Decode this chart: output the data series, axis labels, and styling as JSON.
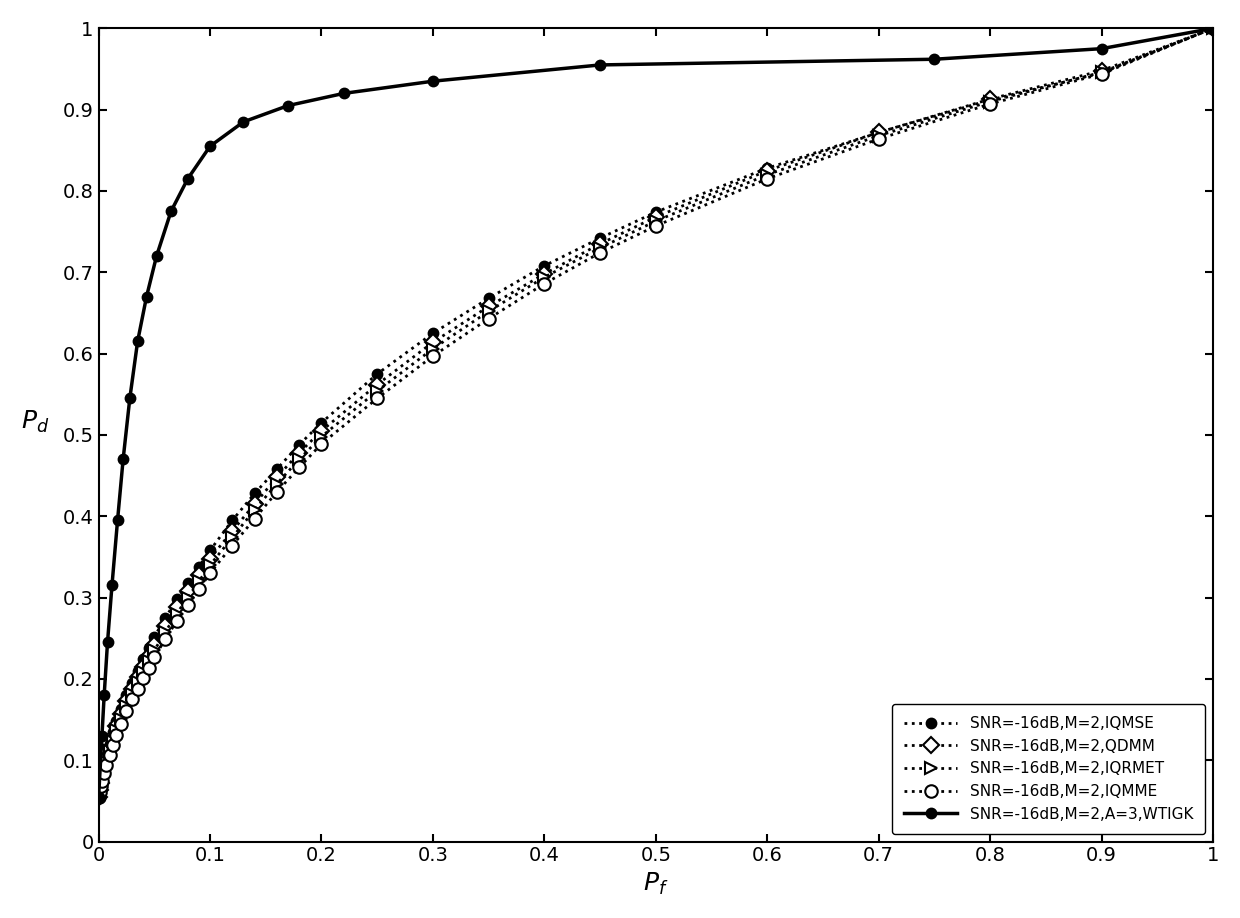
{
  "title": "",
  "xlabel": "$P_f$",
  "ylabel": "$P_d$",
  "xlim": [
    0,
    1
  ],
  "ylim": [
    0,
    1
  ],
  "xticks": [
    0,
    0.1,
    0.2,
    0.3,
    0.4,
    0.5,
    0.6,
    0.7,
    0.8,
    0.9,
    1.0
  ],
  "yticks": [
    0,
    0.1,
    0.2,
    0.3,
    0.4,
    0.5,
    0.6,
    0.7,
    0.8,
    0.9,
    1.0
  ],
  "legend_loc": "lower right",
  "series": [
    {
      "label": "SNR=-16dB,M=2,IQMSE",
      "linestyle": "dotted",
      "linewidth": 2.0,
      "color": "#000000",
      "marker": "o",
      "markersize": 7,
      "markerfacecolor": "#000000",
      "markeredgecolor": "#000000",
      "markevery": 1,
      "x": [
        0.0,
        0.001,
        0.002,
        0.003,
        0.005,
        0.007,
        0.01,
        0.013,
        0.016,
        0.02,
        0.025,
        0.03,
        0.035,
        0.04,
        0.045,
        0.05,
        0.06,
        0.07,
        0.08,
        0.09,
        0.1,
        0.12,
        0.14,
        0.16,
        0.18,
        0.2,
        0.25,
        0.3,
        0.35,
        0.4,
        0.45,
        0.5,
        0.6,
        0.7,
        0.8,
        0.9,
        1.0
      ],
      "y": [
        0.055,
        0.065,
        0.075,
        0.085,
        0.095,
        0.105,
        0.12,
        0.135,
        0.148,
        0.163,
        0.18,
        0.195,
        0.21,
        0.225,
        0.238,
        0.252,
        0.275,
        0.298,
        0.318,
        0.338,
        0.358,
        0.395,
        0.428,
        0.458,
        0.488,
        0.515,
        0.575,
        0.625,
        0.668,
        0.708,
        0.742,
        0.774,
        0.828,
        0.872,
        0.912,
        0.945,
        1.0
      ]
    },
    {
      "label": "SNR=-16dB,M=2,QDMM",
      "linestyle": "dotted",
      "linewidth": 2.0,
      "color": "#000000",
      "marker": "D",
      "markersize": 8,
      "markerfacecolor": "#ffffff",
      "markeredgecolor": "#000000",
      "markevery": 1,
      "x": [
        0.0,
        0.001,
        0.002,
        0.003,
        0.005,
        0.007,
        0.01,
        0.013,
        0.016,
        0.02,
        0.025,
        0.03,
        0.035,
        0.04,
        0.045,
        0.05,
        0.06,
        0.07,
        0.08,
        0.09,
        0.1,
        0.12,
        0.14,
        0.16,
        0.18,
        0.2,
        0.25,
        0.3,
        0.35,
        0.4,
        0.45,
        0.5,
        0.6,
        0.7,
        0.8,
        0.9,
        1.0
      ],
      "y": [
        0.055,
        0.063,
        0.072,
        0.081,
        0.091,
        0.101,
        0.115,
        0.129,
        0.142,
        0.157,
        0.173,
        0.188,
        0.202,
        0.215,
        0.228,
        0.242,
        0.265,
        0.288,
        0.308,
        0.328,
        0.348,
        0.382,
        0.415,
        0.448,
        0.478,
        0.505,
        0.562,
        0.614,
        0.658,
        0.698,
        0.735,
        0.768,
        0.825,
        0.872,
        0.913,
        0.948,
        1.0
      ]
    },
    {
      "label": "SNR=-16dB,M=2,IQRMET",
      "linestyle": "dotted",
      "linewidth": 2.0,
      "color": "#000000",
      "marker": ">",
      "markersize": 8,
      "markerfacecolor": "#ffffff",
      "markeredgecolor": "#000000",
      "markevery": 1,
      "x": [
        0.0,
        0.001,
        0.002,
        0.003,
        0.005,
        0.007,
        0.01,
        0.013,
        0.016,
        0.02,
        0.025,
        0.03,
        0.035,
        0.04,
        0.045,
        0.05,
        0.06,
        0.07,
        0.08,
        0.09,
        0.1,
        0.12,
        0.14,
        0.16,
        0.18,
        0.2,
        0.25,
        0.3,
        0.35,
        0.4,
        0.45,
        0.5,
        0.6,
        0.7,
        0.8,
        0.9,
        1.0
      ],
      "y": [
        0.055,
        0.062,
        0.07,
        0.078,
        0.088,
        0.098,
        0.111,
        0.124,
        0.137,
        0.151,
        0.167,
        0.182,
        0.196,
        0.209,
        0.222,
        0.235,
        0.258,
        0.28,
        0.3,
        0.32,
        0.34,
        0.374,
        0.408,
        0.44,
        0.47,
        0.498,
        0.554,
        0.606,
        0.652,
        0.694,
        0.73,
        0.763,
        0.82,
        0.868,
        0.91,
        0.946,
        1.0
      ]
    },
    {
      "label": "SNR=-16dB,M=2,IQMME",
      "linestyle": "dotted",
      "linewidth": 2.0,
      "color": "#000000",
      "marker": "o",
      "markersize": 9,
      "markerfacecolor": "#ffffff",
      "markeredgecolor": "#000000",
      "markevery": 1,
      "x": [
        0.0,
        0.001,
        0.002,
        0.003,
        0.005,
        0.007,
        0.01,
        0.013,
        0.016,
        0.02,
        0.025,
        0.03,
        0.035,
        0.04,
        0.045,
        0.05,
        0.06,
        0.07,
        0.08,
        0.09,
        0.1,
        0.12,
        0.14,
        0.16,
        0.18,
        0.2,
        0.25,
        0.3,
        0.35,
        0.4,
        0.45,
        0.5,
        0.6,
        0.7,
        0.8,
        0.9,
        1.0
      ],
      "y": [
        0.055,
        0.061,
        0.068,
        0.075,
        0.084,
        0.094,
        0.107,
        0.119,
        0.131,
        0.145,
        0.16,
        0.175,
        0.188,
        0.201,
        0.214,
        0.227,
        0.249,
        0.271,
        0.291,
        0.31,
        0.33,
        0.364,
        0.397,
        0.43,
        0.46,
        0.489,
        0.545,
        0.597,
        0.643,
        0.686,
        0.724,
        0.757,
        0.815,
        0.864,
        0.907,
        0.944,
        1.0
      ]
    },
    {
      "label": "SNR=-16dB,M=2,A=3,WTIGK",
      "linestyle": "solid",
      "linewidth": 2.5,
      "color": "#000000",
      "marker": "o",
      "markersize": 7,
      "markerfacecolor": "#000000",
      "markeredgecolor": "#000000",
      "markevery": 1,
      "x": [
        0.0,
        0.003,
        0.005,
        0.008,
        0.012,
        0.017,
        0.022,
        0.028,
        0.035,
        0.043,
        0.052,
        0.065,
        0.08,
        0.1,
        0.13,
        0.17,
        0.22,
        0.3,
        0.45,
        0.75,
        0.9,
        1.0
      ],
      "y": [
        0.055,
        0.13,
        0.18,
        0.245,
        0.315,
        0.395,
        0.47,
        0.545,
        0.615,
        0.67,
        0.72,
        0.775,
        0.815,
        0.855,
        0.885,
        0.905,
        0.92,
        0.935,
        0.955,
        0.962,
        0.975,
        1.0
      ]
    }
  ],
  "background_color": "#ffffff",
  "tick_fontsize": 14,
  "label_fontsize": 18,
  "legend_fontsize": 11
}
